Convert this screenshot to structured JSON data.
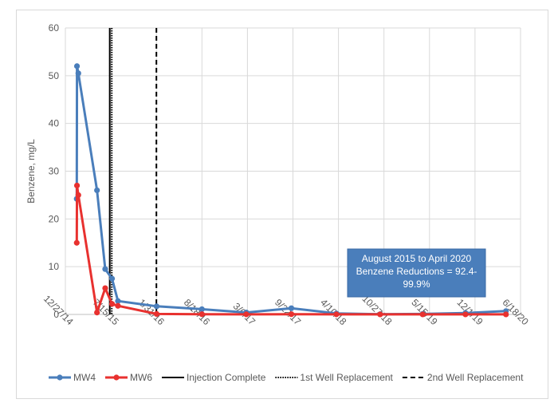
{
  "chart_data": {
    "type": "line",
    "title": "",
    "xlabel": "",
    "ylabel": "Benzene, mg/L",
    "ylim": [
      0,
      60
    ],
    "yticks": [
      0,
      10,
      20,
      30,
      40,
      50,
      60
    ],
    "xlim": [
      "2014-12-27",
      "2020-06-18"
    ],
    "xticks": [
      "12/27/14",
      "7/15/15",
      "1/31/16",
      "8/18/16",
      "3/6/17",
      "9/22/17",
      "4/10/18",
      "10/27/18",
      "5/15/19",
      "12/1/19",
      "6/18/20"
    ],
    "grid": true,
    "legend_position": "bottom",
    "series": [
      {
        "name": "MW4",
        "color": "#4a7ebb",
        "points": [
          {
            "x": "2015-02-15",
            "y": 24.2
          },
          {
            "x": "2015-02-16",
            "y": 52.0
          },
          {
            "x": "2015-02-22",
            "y": 50.5
          },
          {
            "x": "2015-05-15",
            "y": 26.0
          },
          {
            "x": "2015-06-20",
            "y": 9.5
          },
          {
            "x": "2015-07-20",
            "y": 7.5
          },
          {
            "x": "2015-08-15",
            "y": 2.8
          },
          {
            "x": "2016-02-01",
            "y": 1.7
          },
          {
            "x": "2016-08-18",
            "y": 1.1
          },
          {
            "x": "2017-03-01",
            "y": 0.4
          },
          {
            "x": "2017-09-15",
            "y": 1.3
          },
          {
            "x": "2018-04-01",
            "y": 0.2
          },
          {
            "x": "2018-10-10",
            "y": 0.05
          },
          {
            "x": "2019-04-15",
            "y": 0.1
          },
          {
            "x": "2019-10-20",
            "y": 0.3
          },
          {
            "x": "2020-04-15",
            "y": 0.7
          }
        ]
      },
      {
        "name": "MW6",
        "color": "#e8312f",
        "points": [
          {
            "x": "2015-02-15",
            "y": 15.0
          },
          {
            "x": "2015-02-16",
            "y": 27.0
          },
          {
            "x": "2015-02-22",
            "y": 25.0
          },
          {
            "x": "2015-05-15",
            "y": 0.4
          },
          {
            "x": "2015-06-20",
            "y": 5.5
          },
          {
            "x": "2015-07-20",
            "y": 2.2
          },
          {
            "x": "2015-08-15",
            "y": 1.8
          },
          {
            "x": "2016-02-01",
            "y": 0.1
          },
          {
            "x": "2016-08-18",
            "y": 0.05
          },
          {
            "x": "2017-03-01",
            "y": 0.02
          },
          {
            "x": "2017-09-15",
            "y": 0.05
          },
          {
            "x": "2018-04-01",
            "y": 0.02
          },
          {
            "x": "2018-10-10",
            "y": 0.01
          },
          {
            "x": "2019-04-15",
            "y": 0.01
          },
          {
            "x": "2019-10-20",
            "y": 0.01
          },
          {
            "x": "2020-04-15",
            "y": 0.01
          }
        ]
      }
    ],
    "reference_lines": [
      {
        "name": "Injection Complete",
        "x": "2015-07-10",
        "style": "solid",
        "color": "#000000"
      },
      {
        "name": "1st Well Replacement",
        "x": "2015-07-19",
        "style": "dotted",
        "color": "#000000"
      },
      {
        "name": "2nd Well Replacement",
        "x": "2016-01-31",
        "style": "dashed",
        "color": "#000000"
      }
    ],
    "annotation": {
      "lines": [
        "August 2015 to April 2020",
        "Benzene Reductions = 92.4-",
        "99.9%"
      ],
      "background": "#4a7ebb",
      "position": "lower-right"
    }
  }
}
